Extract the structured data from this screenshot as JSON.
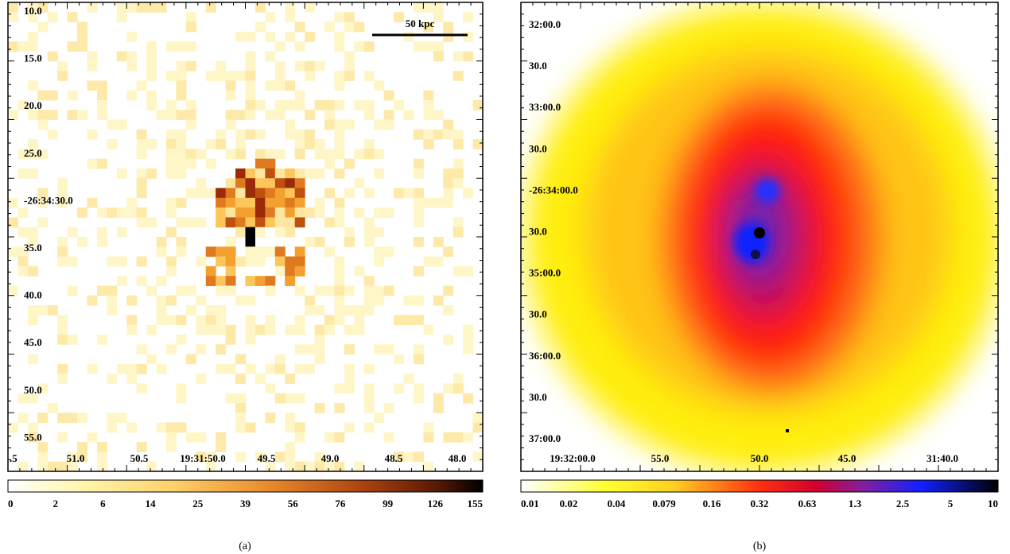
{
  "panels": [
    {
      "caption": "(a)",
      "scale_bar": "50 kpc",
      "y_labels": [
        "10.0",
        "15.0",
        "20.0",
        "25.0",
        "-26:34:30.0",
        "35.0",
        "40.0",
        "45.0",
        "50.0",
        "55.0"
      ],
      "x_labels": [
        ".5",
        "51.0",
        "50.5",
        "19:31:50.0",
        "49.5",
        "49.0",
        "48.5",
        "48.0"
      ],
      "colorbar_labels": [
        "0",
        "2",
        "6",
        "14",
        "25",
        "39",
        "56",
        "76",
        "99",
        "126",
        "155"
      ]
    },
    {
      "caption": "(b)",
      "y_labels": [
        "32:00.0",
        "30.0",
        "33:00.0",
        "30.0",
        "-26:34:00.0",
        "30.0",
        "35:00.0",
        "30.0",
        "36:00.0",
        "30.0",
        "37:00.0"
      ],
      "x_labels": [
        "19:32:00.0",
        "55.0",
        "50.0",
        "45.0",
        "31:40.0"
      ],
      "colorbar_labels": [
        "0.01",
        "0.02",
        "0.04",
        "0.079",
        "0.16",
        "0.32",
        "0.63",
        "1.3",
        "2.5",
        "5",
        "10"
      ]
    }
  ]
}
